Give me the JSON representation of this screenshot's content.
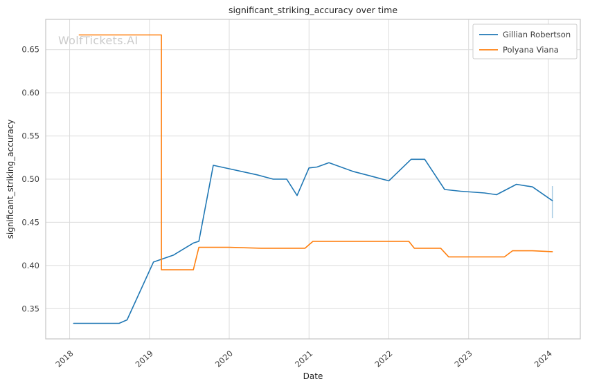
{
  "watermark": "WolfTickets.AI",
  "colors": {
    "blue": "#1f77b4",
    "orange": "#ff7f0e",
    "grid": "#dcdcdc",
    "axis_border": "#c4c4c4",
    "text": "#3d3d3d",
    "error_bar": "#a9cce3",
    "legend_border": "#cccccc"
  },
  "chart_data": {
    "type": "line",
    "title": "significant_striking_accuracy over time",
    "xlabel": "Date",
    "ylabel": "significant_striking_accuracy",
    "xlim": [
      2017.7,
      2024.4
    ],
    "ylim": [
      0.315,
      0.685
    ],
    "xticks": [
      2018,
      2019,
      2020,
      2021,
      2022,
      2023,
      2024
    ],
    "yticks": [
      0.35,
      0.4,
      0.45,
      0.5,
      0.55,
      0.6,
      0.65
    ],
    "grid": true,
    "legend_position": "upper right",
    "series": [
      {
        "name": "Gillian Robertson",
        "color": "#1f77b4",
        "x": [
          2018.05,
          2018.62,
          2018.72,
          2019.05,
          2019.3,
          2019.55,
          2019.62,
          2019.8,
          2020.0,
          2020.35,
          2020.55,
          2020.72,
          2020.85,
          2021.0,
          2021.1,
          2021.25,
          2021.55,
          2021.8,
          2022.0,
          2022.28,
          2022.45,
          2022.7,
          2022.9,
          2023.2,
          2023.35,
          2023.6,
          2023.8,
          2024.05
        ],
        "y": [
          0.333,
          0.333,
          0.337,
          0.404,
          0.412,
          0.426,
          0.428,
          0.516,
          0.512,
          0.505,
          0.5,
          0.5,
          0.481,
          0.513,
          0.514,
          0.519,
          0.509,
          0.503,
          0.498,
          0.523,
          0.523,
          0.488,
          0.486,
          0.484,
          0.482,
          0.494,
          0.491,
          0.475
        ]
      },
      {
        "name": "Polyana Viana",
        "color": "#ff7f0e",
        "x": [
          2018.12,
          2019.15,
          2019.15,
          2019.55,
          2019.62,
          2020.0,
          2020.4,
          2020.7,
          2020.95,
          2021.05,
          2021.3,
          2022.0,
          2022.25,
          2022.32,
          2022.65,
          2022.75,
          2023.1,
          2023.45,
          2023.55,
          2023.8,
          2024.05
        ],
        "y": [
          0.667,
          0.667,
          0.395,
          0.395,
          0.421,
          0.421,
          0.42,
          0.42,
          0.42,
          0.428,
          0.428,
          0.428,
          0.428,
          0.42,
          0.42,
          0.41,
          0.41,
          0.41,
          0.417,
          0.417,
          0.416
        ]
      }
    ],
    "error_bar": {
      "x": 2024.05,
      "y_low": 0.455,
      "y_high": 0.492
    }
  }
}
